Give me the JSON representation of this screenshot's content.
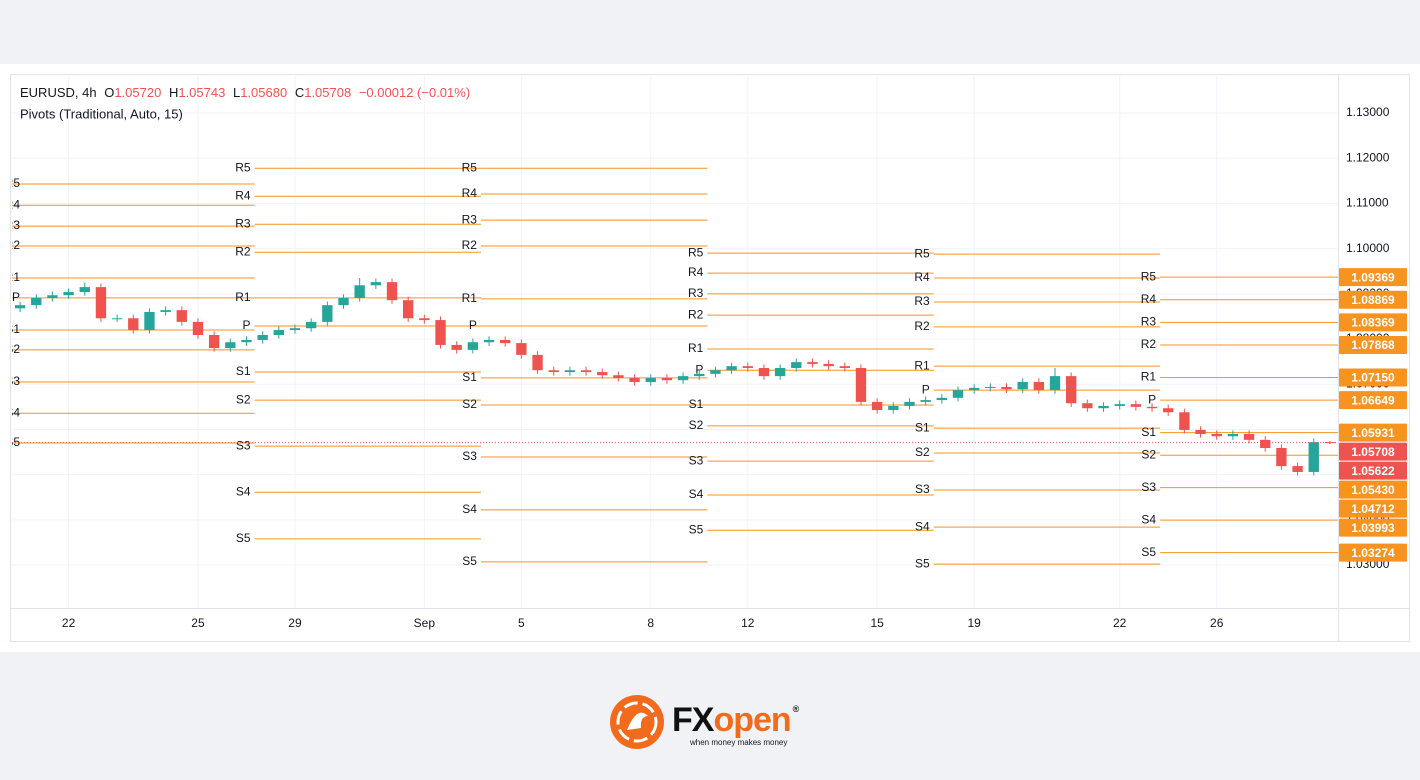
{
  "header": {
    "symbol": "EURUSD, 4h",
    "open_label": "O",
    "open": "1.05720",
    "high_label": "H",
    "high": "1.05743",
    "low_label": "L",
    "low": "1.05680",
    "close_label": "C",
    "close": "1.05708",
    "change": "−0.00012 (−0.01%)",
    "indicator": "Pivots (Traditional, Auto, 15)"
  },
  "chart_data": {
    "type": "candlestick",
    "categories": [
      null,
      null,
      null,
      "22",
      null,
      null,
      null,
      null,
      null,
      null,
      null,
      "25",
      null,
      null,
      null,
      null,
      null,
      "29",
      null,
      null,
      null,
      null,
      null,
      null,
      null,
      "Sep",
      null,
      null,
      null,
      null,
      null,
      "5",
      null,
      null,
      null,
      null,
      null,
      null,
      null,
      "8",
      null,
      null,
      null,
      null,
      null,
      "12",
      null,
      null,
      null,
      null,
      null,
      null,
      null,
      "15",
      null,
      null,
      null,
      null,
      null,
      "19",
      null,
      null,
      null,
      null,
      null,
      null,
      null,
      null,
      "22",
      null,
      null,
      null,
      null,
      null,
      "26",
      null,
      null,
      null,
      null,
      null,
      null,
      null
    ],
    "open": [
      1.0868,
      1.0875,
      1.0891,
      1.0897,
      1.0904,
      1.0915,
      1.0846,
      1.0846,
      1.082,
      1.086,
      1.0864,
      1.0838,
      1.0809,
      1.078,
      1.0793,
      1.0798,
      1.0809,
      1.082,
      1.0824,
      1.0838,
      1.0875,
      1.0891,
      1.0919,
      1.0926,
      1.0886,
      1.0846,
      1.0842,
      1.0787,
      1.0776,
      1.0793,
      1.0798,
      1.0791,
      1.0765,
      1.0731,
      1.0727,
      1.0731,
      1.0727,
      1.072,
      1.0714,
      1.0705,
      1.0714,
      1.0709,
      1.0718,
      1.0723,
      1.0731,
      1.074,
      1.0736,
      1.0718,
      1.0736,
      1.0749,
      1.0745,
      1.074,
      1.0736,
      1.0661,
      1.0643,
      1.0652,
      1.0661,
      1.0665,
      1.067,
      1.0687,
      1.0692,
      1.0694,
      1.0689,
      1.0705,
      1.0687,
      1.0718,
      1.0658,
      1.0647,
      1.0652,
      1.0656,
      1.065,
      1.0647,
      1.0638,
      1.0599,
      1.059,
      1.0585,
      1.059,
      1.0577,
      1.0559,
      1.0519,
      1.0506,
      1.0572
    ],
    "high": [
      1.0883,
      1.0899,
      1.0905,
      1.0912,
      1.0925,
      1.0923,
      1.0854,
      1.0854,
      1.0868,
      1.0872,
      1.0872,
      1.0846,
      1.0817,
      1.0801,
      1.0806,
      1.0817,
      1.0828,
      1.0832,
      1.0846,
      1.0883,
      1.0899,
      1.0935,
      1.0934,
      1.0934,
      1.0894,
      1.0854,
      1.085,
      1.0795,
      1.0801,
      1.0806,
      1.0806,
      1.0799,
      1.0773,
      1.0739,
      1.0739,
      1.0739,
      1.0735,
      1.0728,
      1.0722,
      1.0722,
      1.0722,
      1.0726,
      1.0731,
      1.0739,
      1.0748,
      1.0748,
      1.0744,
      1.0744,
      1.0757,
      1.0757,
      1.0753,
      1.0748,
      1.0744,
      1.0669,
      1.066,
      1.0669,
      1.0673,
      1.0678,
      1.0695,
      1.07,
      1.0702,
      1.0702,
      1.0713,
      1.0713,
      1.0736,
      1.0726,
      1.0666,
      1.066,
      1.0664,
      1.0664,
      1.0658,
      1.0655,
      1.0646,
      1.0607,
      1.0598,
      1.0598,
      1.0598,
      1.0585,
      1.0567,
      1.0527,
      1.058,
      1.05743
    ],
    "low": [
      1.086,
      1.0867,
      1.0883,
      1.0889,
      1.0896,
      1.0838,
      1.0838,
      1.0812,
      1.0812,
      1.0852,
      1.083,
      1.0801,
      1.0772,
      1.0772,
      1.0785,
      1.079,
      1.0801,
      1.0812,
      1.0816,
      1.083,
      1.0867,
      1.0883,
      1.0911,
      1.0878,
      1.0838,
      1.0834,
      1.0779,
      1.0768,
      1.0768,
      1.0785,
      1.0783,
      1.0757,
      1.0723,
      1.0719,
      1.0719,
      1.0719,
      1.0712,
      1.0706,
      1.0697,
      1.0697,
      1.0701,
      1.0701,
      1.071,
      1.0715,
      1.0723,
      1.0728,
      1.071,
      1.071,
      1.0728,
      1.0737,
      1.0732,
      1.0728,
      1.0653,
      1.0635,
      1.0635,
      1.0644,
      1.0653,
      1.0657,
      1.0662,
      1.0679,
      1.0684,
      1.0681,
      1.0681,
      1.0679,
      1.0679,
      1.065,
      1.0639,
      1.0639,
      1.0644,
      1.0642,
      1.0639,
      1.063,
      1.0591,
      1.0582,
      1.0577,
      1.0577,
      1.0569,
      1.0551,
      1.0511,
      1.0498,
      1.0498,
      1.0568
    ],
    "close": [
      1.0875,
      1.0891,
      1.0897,
      1.0904,
      1.0915,
      1.0846,
      1.0846,
      1.082,
      1.086,
      1.0864,
      1.0838,
      1.0809,
      1.078,
      1.0793,
      1.0798,
      1.0809,
      1.082,
      1.0824,
      1.0838,
      1.0875,
      1.0891,
      1.0919,
      1.0926,
      1.0886,
      1.0846,
      1.0842,
      1.0787,
      1.0776,
      1.0793,
      1.0798,
      1.0791,
      1.0765,
      1.0731,
      1.0727,
      1.0731,
      1.0727,
      1.072,
      1.0714,
      1.0705,
      1.0714,
      1.0709,
      1.0718,
      1.0723,
      1.0731,
      1.074,
      1.0736,
      1.0718,
      1.0736,
      1.0749,
      1.0745,
      1.074,
      1.0736,
      1.0661,
      1.0643,
      1.0652,
      1.0661,
      1.0665,
      1.067,
      1.0687,
      1.0692,
      1.0694,
      1.0689,
      1.0705,
      1.0687,
      1.0718,
      1.0658,
      1.0647,
      1.0652,
      1.0656,
      1.065,
      1.0647,
      1.0638,
      1.0599,
      1.059,
      1.0585,
      1.059,
      1.0577,
      1.0559,
      1.0519,
      1.0506,
      1.0572,
      1.05708
    ],
    "up_color": "#26a69a",
    "down_color": "#ef5350",
    "ylim": [
      1.0205,
      1.1382
    ],
    "yticks": [
      {
        "value": 1.13,
        "label": "1.13000"
      },
      {
        "value": 1.12,
        "label": "1.12000"
      },
      {
        "value": 1.11,
        "label": "1.11000"
      },
      {
        "value": 1.1,
        "label": "1.10000"
      },
      {
        "value": 1.09,
        "label": "1.09000"
      },
      {
        "value": 1.08,
        "label": "1.08000"
      },
      {
        "value": 1.07,
        "label": "1.07000"
      },
      {
        "value": 1.06,
        "label": "1.06000"
      },
      {
        "value": 1.05,
        "label": "1.05000"
      },
      {
        "value": 1.04,
        "label": "1.04000"
      },
      {
        "value": 1.03,
        "label": "1.03000"
      }
    ],
    "grid": true,
    "level_names": [
      "R5",
      "R4",
      "R3",
      "R2",
      "R1",
      "P",
      "S1",
      "S2",
      "S3",
      "S4",
      "S5"
    ],
    "pivot_color": "#f7931e",
    "pivots": [
      {
        "levels": [
          1.1143,
          1.1096,
          1.105,
          1.1006,
          1.0935,
          1.0891,
          1.082,
          1.0776,
          1.0705,
          1.0636,
          1.057
        ]
      },
      {
        "levels": [
          1.1178,
          1.1116,
          1.1054,
          1.0992,
          1.0891,
          1.0829,
          1.0727,
          1.0665,
          1.0563,
          1.0461,
          1.0358
        ]
      },
      {
        "levels": [
          1.1178,
          1.1121,
          1.1063,
          1.1006,
          1.0889,
          1.0829,
          1.0714,
          1.0654,
          1.0539,
          1.0422,
          1.0307
        ]
      },
      {
        "levels": [
          1.099,
          1.0946,
          1.09,
          1.0853,
          1.0778,
          1.0731,
          1.0654,
          1.0608,
          1.053,
          1.0455,
          1.0377
        ]
      },
      {
        "levels": [
          1.0988,
          1.0935,
          1.0882,
          1.0827,
          1.074,
          1.0687,
          1.0603,
          1.0548,
          1.0466,
          1.0384,
          1.0302
        ]
      },
      {
        "levels": [
          1.09369,
          1.08869,
          1.08369,
          1.07868,
          1.0715,
          1.06649,
          1.05931,
          1.0543,
          1.04712,
          1.03993,
          1.03274
        ],
        "value_labels": [
          "1.09369",
          "1.08869",
          "1.08369",
          "1.07868",
          "1.07150",
          "1.06649",
          "1.05931",
          "1.05430",
          "1.04712",
          "1.03993",
          "1.03274"
        ]
      }
    ],
    "last_price_color": "#ef5350",
    "extra_price_tag": {
      "value": 1.05622,
      "color": "#ef5350"
    }
  },
  "footer": {
    "brand_fx": "FX",
    "brand_open": "open",
    "registered": "®",
    "tagline": "when money makes money"
  }
}
